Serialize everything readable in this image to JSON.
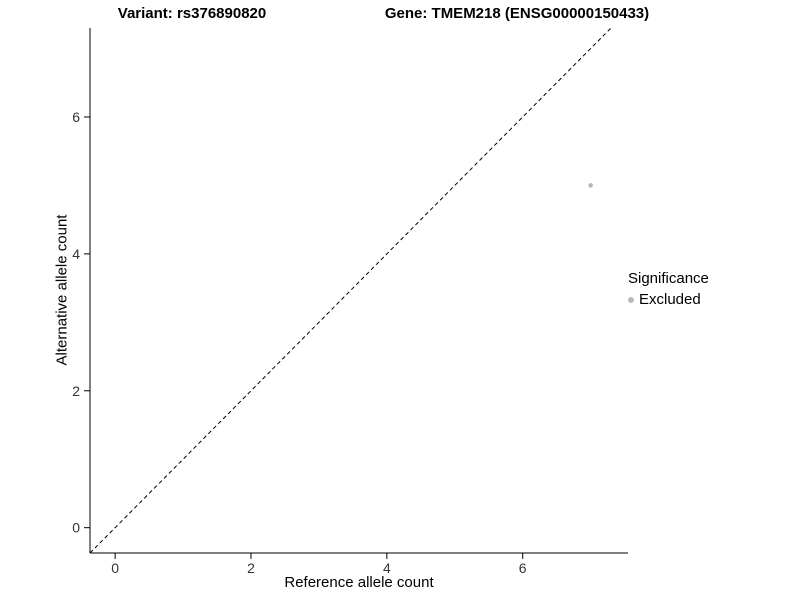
{
  "chart_data": {
    "type": "scatter",
    "title_left": "Variant: rs376890820",
    "title_right": "Gene: TMEM218 (ENSG00000150433)",
    "xlabel": "Reference allele count",
    "ylabel": "Alternative allele count",
    "xlim": [
      -0.37,
      7.55
    ],
    "ylim": [
      -0.37,
      7.3
    ],
    "x_ticks": [
      0,
      2,
      4,
      6
    ],
    "y_ticks": [
      0,
      2,
      4,
      6
    ],
    "grid": false,
    "points": [
      {
        "x": 7,
        "y": 5,
        "significance": "Excluded"
      }
    ],
    "point_color": "#b8b8b8",
    "identity_line": {
      "style": "dashed",
      "color": "#000000",
      "equation": "y = x"
    },
    "legend": {
      "position": "right",
      "title": "Significance",
      "items": [
        {
          "label": "Excluded",
          "color": "#b8b8b8"
        }
      ]
    },
    "axis_color": "#000000",
    "tick_label_color": "#333333"
  }
}
